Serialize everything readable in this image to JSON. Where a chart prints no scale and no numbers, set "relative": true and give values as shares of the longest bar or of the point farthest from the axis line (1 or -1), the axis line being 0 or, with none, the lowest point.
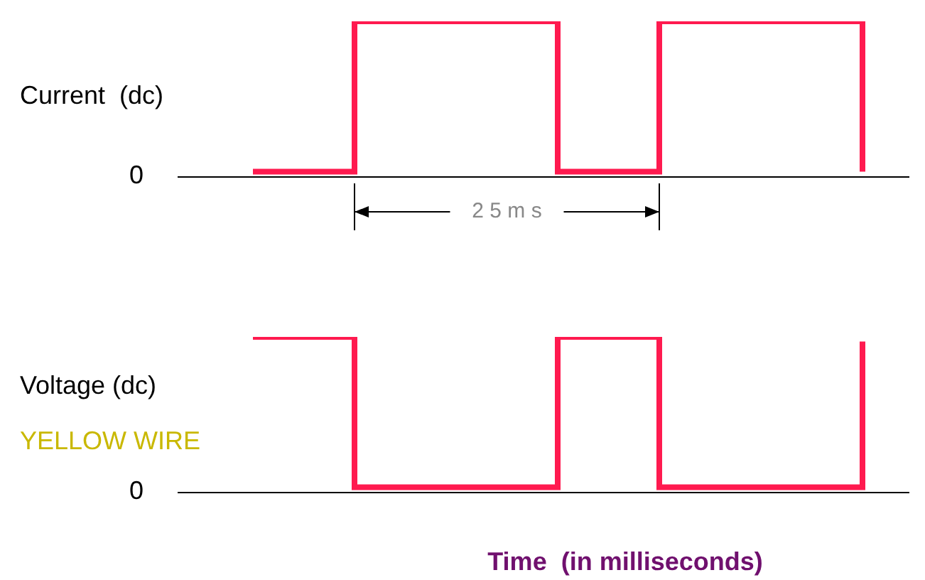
{
  "chart_data": [
    {
      "type": "step",
      "relative": true,
      "ylabel": "Current  (dc)",
      "categories": [
        null,
        null,
        null,
        null,
        null,
        null,
        null
      ],
      "tick_labels": false,
      "grid": false,
      "legend": false,
      "marker": "none",
      "series": [
        {
          "color": "#ff1a4f",
          "values": [
            0.03,
            1,
            1,
            0.03,
            1,
            1,
            0.03
          ]
        }
      ],
      "annotations": [
        "0",
        "2 5 m s"
      ]
    },
    {
      "type": "step",
      "relative": true,
      "ylabel": "Voltage (dc)",
      "xlabel": "Time  (in milliseconds)",
      "categories": [
        null,
        null,
        null,
        null,
        null,
        null,
        null
      ],
      "tick_labels": false,
      "grid": false,
      "legend": false,
      "marker": "none",
      "series": [
        {
          "color": "#ff1a4f",
          "values": [
            1,
            0.03,
            0.03,
            1,
            0.03,
            0.03,
            0.97
          ]
        }
      ],
      "annotations": [
        "0",
        "YELLOW WIRE"
      ]
    }
  ]
}
